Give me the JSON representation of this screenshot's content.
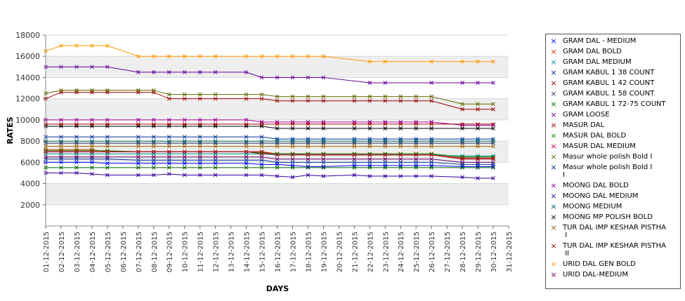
{
  "chart_data": {
    "type": "line",
    "title": "",
    "xlabel": "DAYS",
    "ylabel": "RATES",
    "ylim": [
      0,
      18000
    ],
    "yticks": [
      2000,
      4000,
      6000,
      8000,
      10000,
      12000,
      14000,
      16000,
      18000
    ],
    "grid": true,
    "legend_position": "right",
    "categories": [
      "01-12-2015",
      "02-12-2015",
      "03-12-2015",
      "04-12-2015",
      "05-12-2015",
      "06-12-2015",
      "07-12-2015",
      "08-12-2015",
      "09-12-2015",
      "10-12-2015",
      "11-12-2015",
      "12-12-2015",
      "13-12-2015",
      "14-12-2015",
      "15-12-2015",
      "16-12-2015",
      "17-12-2015",
      "18-12-2015",
      "19-12-2015",
      "20-12-2015",
      "21-12-2015",
      "22-12-2015",
      "23-12-2015",
      "24-12-2015",
      "25-12-2015",
      "26-12-2015",
      "27-12-2015",
      "28-12-2015",
      "29-12-2015",
      "30-12-2015",
      "31-12-2015"
    ],
    "series": [
      {
        "name": "GRAM DAL - MEDIUM",
        "color": "#0000ff",
        "values": [
          6000,
          6000,
          6000,
          6000,
          5900,
          null,
          5900,
          5900,
          5900,
          5900,
          5900,
          5900,
          null,
          5900,
          5800,
          5800,
          5700,
          5600,
          5600,
          null,
          5700,
          5700,
          5700,
          5700,
          5700,
          5700,
          null,
          5600,
          5600,
          5600,
          null
        ]
      },
      {
        "name": "GRAM DAL BOLD",
        "color": "#cc3300",
        "values": [
          7200,
          7200,
          7200,
          7200,
          7000,
          null,
          7000,
          7000,
          7000,
          7000,
          7000,
          7000,
          null,
          7000,
          7000,
          6800,
          6800,
          6800,
          6800,
          null,
          6800,
          6800,
          6800,
          6800,
          6800,
          6800,
          null,
          6500,
          6500,
          6500,
          null
        ]
      },
      {
        "name": "GRAM DAL MEDIUM",
        "color": "#009999",
        "values": [
          6800,
          6800,
          6800,
          6800,
          6800,
          null,
          6800,
          6800,
          6800,
          6800,
          6800,
          6800,
          null,
          6800,
          6800,
          6700,
          6700,
          6700,
          6700,
          null,
          6700,
          6700,
          6700,
          6700,
          6700,
          6700,
          null,
          6600,
          6600,
          6600,
          null
        ]
      },
      {
        "name": "GRAM KABUL 1 38 COUNT",
        "color": "#003399",
        "values": [
          8400,
          8400,
          8400,
          8400,
          8400,
          null,
          8400,
          8400,
          8400,
          8400,
          8400,
          8400,
          null,
          8400,
          8400,
          8200,
          8200,
          8200,
          8200,
          null,
          8200,
          8200,
          8200,
          8200,
          8200,
          8200,
          null,
          8200,
          8200,
          8200,
          null
        ]
      },
      {
        "name": "GRAM KABUL 1 42 COUNT",
        "color": "#990000",
        "values": [
          12000,
          12600,
          12600,
          12600,
          12600,
          null,
          12600,
          12600,
          12000,
          12000,
          12000,
          12000,
          null,
          12000,
          12000,
          11800,
          11800,
          11800,
          11800,
          null,
          11800,
          11800,
          11800,
          11800,
          11800,
          11800,
          null,
          11000,
          11000,
          11000,
          null
        ]
      },
      {
        "name": "GRAM KABUL 1 58 COUNT",
        "color": "#333366",
        "values": [
          7800,
          7800,
          7800,
          7800,
          7800,
          null,
          7800,
          7800,
          7800,
          7800,
          7800,
          7800,
          null,
          7800,
          7800,
          7800,
          7800,
          7800,
          7800,
          null,
          7800,
          7800,
          7800,
          7800,
          7800,
          7800,
          null,
          7800,
          7800,
          7800,
          null
        ]
      },
      {
        "name": "GRAM KABUL 1 72-75 COUNT",
        "color": "#006600",
        "values": [
          5500,
          5500,
          5500,
          5500,
          5500,
          null,
          5500,
          5500,
          5500,
          5500,
          5500,
          5500,
          null,
          5500,
          5500,
          5500,
          5500,
          5500,
          5500,
          null,
          5500,
          5500,
          5500,
          5500,
          5500,
          5500,
          null,
          5500,
          5500,
          5500,
          null
        ]
      },
      {
        "name": "GRAM LOOSE",
        "color": "#660099",
        "values": [
          15000,
          15000,
          15000,
          15000,
          15000,
          null,
          14500,
          14500,
          14500,
          14500,
          14500,
          14500,
          null,
          14500,
          14000,
          14000,
          14000,
          14000,
          14000,
          null,
          null,
          13500,
          13500,
          null,
          null,
          13500,
          null,
          13500,
          13500,
          13500,
          null
        ]
      },
      {
        "name": "MASUR DAL",
        "color": "#990000",
        "values": [
          7000,
          7000,
          7000,
          7000,
          7000,
          null,
          7000,
          7000,
          7000,
          7000,
          7000,
          7000,
          null,
          7000,
          6800,
          6800,
          6800,
          6700,
          6700,
          null,
          6700,
          6700,
          6700,
          6700,
          6700,
          6700,
          null,
          6300,
          6300,
          6300,
          null
        ]
      },
      {
        "name": "MASUR DAL BOLD",
        "color": "#009900",
        "values": [
          7100,
          7100,
          7100,
          7100,
          7100,
          null,
          7000,
          7000,
          7000,
          7000,
          7000,
          7000,
          null,
          7000,
          6900,
          6800,
          6800,
          6800,
          6800,
          null,
          6800,
          6800,
          6800,
          6800,
          6800,
          6800,
          null,
          6500,
          6500,
          6500,
          null
        ]
      },
      {
        "name": "MASUR DAL MEDIUM",
        "color": "#cc0033",
        "values": [
          7000,
          7000,
          7000,
          7000,
          7000,
          null,
          7000,
          7000,
          7000,
          7000,
          7000,
          7000,
          null,
          7000,
          7000,
          6700,
          6700,
          6700,
          6700,
          null,
          6700,
          6700,
          6700,
          6700,
          6700,
          6700,
          null,
          6400,
          6400,
          6400,
          null
        ]
      },
      {
        "name": "Masur whole polish Bold I",
        "color": "#666600",
        "values": [
          12500,
          12800,
          12800,
          12800,
          12800,
          null,
          12800,
          12800,
          12400,
          12400,
          12400,
          12400,
          null,
          12400,
          12400,
          12200,
          12200,
          12200,
          12200,
          null,
          12200,
          12200,
          12200,
          12200,
          12200,
          12200,
          null,
          11500,
          11500,
          11500,
          null
        ]
      },
      {
        "name": "Masur whole polish Bold I\nI",
        "color": "#003399",
        "values": [
          6300,
          6300,
          6300,
          6300,
          6300,
          null,
          6200,
          6200,
          6200,
          6200,
          6200,
          6200,
          null,
          6200,
          6200,
          6000,
          6000,
          6000,
          6000,
          null,
          6000,
          6000,
          6000,
          6000,
          6000,
          6000,
          null,
          5800,
          5800,
          5800,
          null
        ]
      },
      {
        "name": "MOONG DAL BOLD",
        "color": "#990099",
        "values": [
          10000,
          10000,
          10000,
          10000,
          10000,
          null,
          10000,
          10000,
          10000,
          10000,
          10000,
          10000,
          null,
          10000,
          9800,
          9800,
          9800,
          9800,
          9800,
          null,
          9800,
          9800,
          9800,
          9800,
          9800,
          9800,
          null,
          9500,
          9500,
          9500,
          null
        ]
      },
      {
        "name": "MOONG DAL MEDIUM",
        "color": "#330099",
        "values": [
          5000,
          5000,
          5000,
          4900,
          4800,
          null,
          4800,
          4800,
          4900,
          4800,
          4800,
          4800,
          null,
          4800,
          4800,
          4700,
          4600,
          4800,
          4700,
          null,
          4800,
          4700,
          4700,
          4700,
          4700,
          4700,
          null,
          4600,
          4500,
          4500,
          null
        ]
      },
      {
        "name": "MOONG MEDIUM",
        "color": "#006666",
        "values": [
          8000,
          8000,
          8000,
          8000,
          8000,
          null,
          8000,
          8000,
          8000,
          8000,
          8000,
          8000,
          null,
          8000,
          8000,
          8000,
          8000,
          8000,
          8000,
          null,
          8000,
          8000,
          8000,
          8000,
          8000,
          8000,
          null,
          8000,
          8000,
          8000,
          null
        ]
      },
      {
        "name": "MOONG MP POLISH BOLD",
        "color": "#000000",
        "values": [
          9400,
          9400,
          9400,
          9400,
          9400,
          null,
          9400,
          9400,
          9400,
          9400,
          9400,
          9400,
          null,
          9400,
          9400,
          9200,
          9200,
          9200,
          9200,
          null,
          9200,
          9200,
          9200,
          9200,
          9200,
          9200,
          null,
          9200,
          9200,
          9200,
          null
        ]
      },
      {
        "name": "TUR DAL IMP KESHAR PISTHA\n I",
        "color": "#996600",
        "values": [
          7500,
          7500,
          7500,
          7500,
          7500,
          null,
          7500,
          7500,
          7500,
          7500,
          7500,
          7500,
          null,
          7500,
          7500,
          7500,
          7500,
          7500,
          7500,
          null,
          7500,
          7500,
          7500,
          7500,
          7500,
          7500,
          null,
          7500,
          7500,
          7500,
          null
        ]
      },
      {
        "name": "TUR DAL IMP KESHAR PISTHA\n II",
        "color": "#990000",
        "values": [
          9600,
          9600,
          9600,
          9600,
          9600,
          null,
          9600,
          9600,
          9600,
          9600,
          9600,
          9600,
          null,
          9600,
          9600,
          9600,
          9600,
          9600,
          9600,
          null,
          9600,
          9600,
          9600,
          9600,
          9600,
          9600,
          null,
          9600,
          9600,
          9600,
          null
        ]
      },
      {
        "name": "URID DAL GEN BOLD",
        "color": "#ff9900",
        "values": [
          16500,
          17000,
          17000,
          17000,
          17000,
          null,
          16000,
          16000,
          16000,
          16000,
          16000,
          16000,
          null,
          16000,
          16000,
          16000,
          16000,
          16000,
          16000,
          null,
          null,
          15500,
          15500,
          null,
          null,
          15500,
          null,
          15500,
          15500,
          15500,
          null
        ]
      },
      {
        "name": "URID DAL-MEDIUM",
        "color": "#660066",
        "values": [
          6500,
          6500,
          6500,
          6500,
          6500,
          null,
          6500,
          6500,
          6500,
          6500,
          6500,
          6500,
          null,
          6500,
          6500,
          6300,
          6300,
          6300,
          6300,
          null,
          6300,
          6300,
          6300,
          6300,
          6300,
          6300,
          null,
          6000,
          6000,
          6000,
          null
        ]
      }
    ]
  }
}
